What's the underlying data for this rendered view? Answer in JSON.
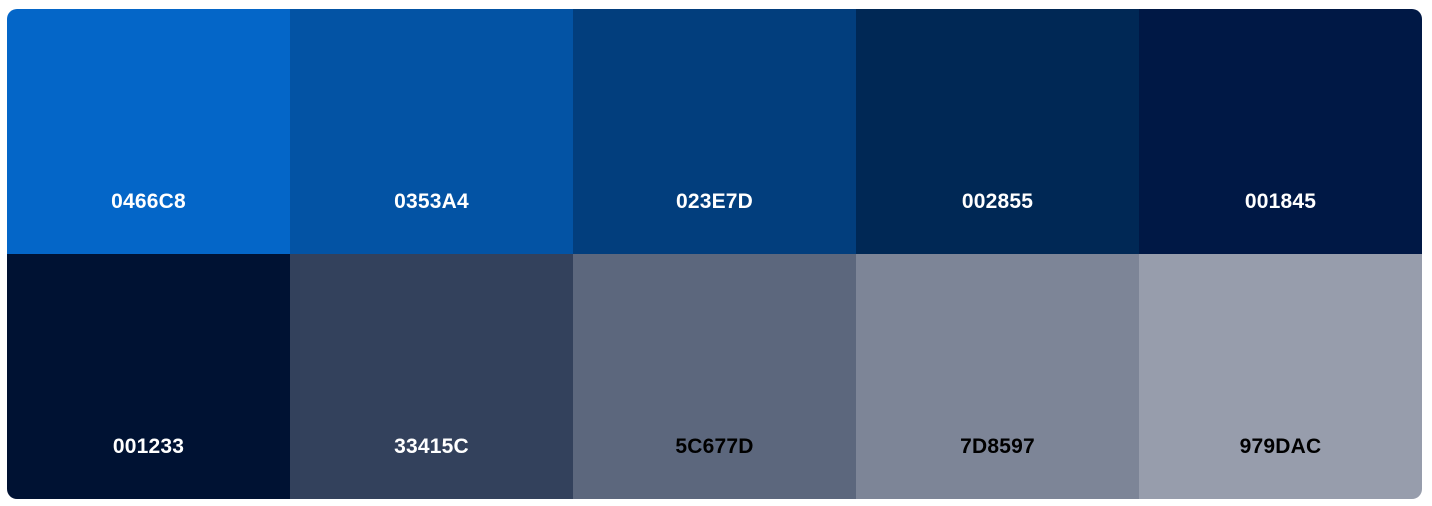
{
  "palette": {
    "swatches": [
      {
        "hex": "0466C8",
        "color": "#0466C8",
        "text_color": "#FFFFFF"
      },
      {
        "hex": "0353A4",
        "color": "#0353A4",
        "text_color": "#FFFFFF"
      },
      {
        "hex": "023E7D",
        "color": "#023E7D",
        "text_color": "#FFFFFF"
      },
      {
        "hex": "002855",
        "color": "#002855",
        "text_color": "#FFFFFF"
      },
      {
        "hex": "001845",
        "color": "#001845",
        "text_color": "#FFFFFF"
      },
      {
        "hex": "001233",
        "color": "#001233",
        "text_color": "#FFFFFF"
      },
      {
        "hex": "33415C",
        "color": "#33415C",
        "text_color": "#FFFFFF"
      },
      {
        "hex": "5C677D",
        "color": "#5C677D",
        "text_color": "#000000"
      },
      {
        "hex": "7D8597",
        "color": "#7D8597",
        "text_color": "#000000"
      },
      {
        "hex": "979DAC",
        "color": "#979DAC",
        "text_color": "#000000"
      }
    ]
  }
}
